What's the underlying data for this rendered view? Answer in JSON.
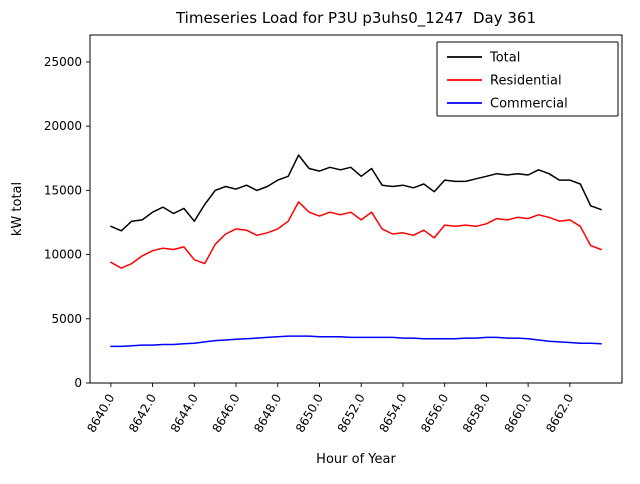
{
  "chart_data": {
    "type": "line",
    "title": "Timeseries Load for P3U p3uhs0_1247  Day 361",
    "xlabel": "Hour of Year",
    "ylabel": "kW total",
    "xlim": [
      8639.0,
      8664.5
    ],
    "ylim": [
      0,
      27100
    ],
    "grid": false,
    "legend_position": "upper right",
    "xticks": [
      8640,
      8642,
      8644,
      8646,
      8648,
      8650,
      8652,
      8654,
      8656,
      8658,
      8660,
      8662
    ],
    "xtick_labels": [
      "8640.0",
      "8642.0",
      "8644.0",
      "8646.0",
      "8648.0",
      "8650.0",
      "8652.0",
      "8654.0",
      "8656.0",
      "8658.0",
      "8660.0",
      "8662.0"
    ],
    "yticks": [
      0,
      5000,
      10000,
      15000,
      20000,
      25000
    ],
    "ytick_labels": [
      "0",
      "5000",
      "10000",
      "15000",
      "20000",
      "25000"
    ],
    "x": [
      8640.0,
      8640.5,
      8641.0,
      8641.5,
      8642.0,
      8642.5,
      8643.0,
      8643.5,
      8644.0,
      8644.5,
      8645.0,
      8645.5,
      8646.0,
      8646.5,
      8647.0,
      8647.5,
      8648.0,
      8648.5,
      8649.0,
      8649.5,
      8650.0,
      8650.5,
      8651.0,
      8651.5,
      8652.0,
      8652.5,
      8653.0,
      8653.5,
      8654.0,
      8654.5,
      8655.0,
      8655.5,
      8656.0,
      8656.5,
      8657.0,
      8657.5,
      8658.0,
      8658.5,
      8659.0,
      8659.5,
      8660.0,
      8660.5,
      8661.0,
      8661.5,
      8662.0,
      8662.5,
      8663.0,
      8663.5
    ],
    "series": [
      {
        "name": "Total",
        "color": "#000000",
        "values": [
          12200,
          11850,
          12600,
          12700,
          13300,
          13700,
          13200,
          13600,
          12600,
          13900,
          15000,
          15300,
          15100,
          15400,
          15000,
          15300,
          15800,
          16100,
          17750,
          16700,
          16500,
          16800,
          16600,
          16800,
          16100,
          16700,
          15400,
          15300,
          15400,
          15200,
          15500,
          14900,
          15800,
          15700,
          15700,
          15900,
          16100,
          16300,
          16200,
          16300,
          16200,
          16600,
          16300,
          15800,
          15800,
          15500,
          13800,
          13500
        ]
      },
      {
        "name": "Residential",
        "color": "#ff0000",
        "values": [
          9400,
          8950,
          9300,
          9900,
          10300,
          10500,
          10400,
          10600,
          9600,
          9300,
          10800,
          11600,
          12000,
          11900,
          11500,
          11700,
          12000,
          12600,
          14100,
          13300,
          13000,
          13300,
          13100,
          13300,
          12700,
          13300,
          12000,
          11600,
          11700,
          11500,
          11900,
          11300,
          12300,
          12200,
          12300,
          12200,
          12400,
          12800,
          12700,
          12900,
          12800,
          13100,
          12900,
          12600,
          12700,
          12200,
          10700,
          10400
        ]
      },
      {
        "name": "Commercial",
        "color": "#0000ff",
        "values": [
          2850,
          2850,
          2900,
          2950,
          2950,
          3000,
          3000,
          3050,
          3100,
          3200,
          3300,
          3350,
          3400,
          3450,
          3500,
          3550,
          3600,
          3650,
          3650,
          3650,
          3600,
          3600,
          3600,
          3550,
          3550,
          3550,
          3550,
          3550,
          3500,
          3500,
          3450,
          3450,
          3450,
          3450,
          3500,
          3500,
          3550,
          3550,
          3500,
          3500,
          3450,
          3350,
          3250,
          3200,
          3150,
          3100,
          3100,
          3050
        ]
      }
    ]
  }
}
